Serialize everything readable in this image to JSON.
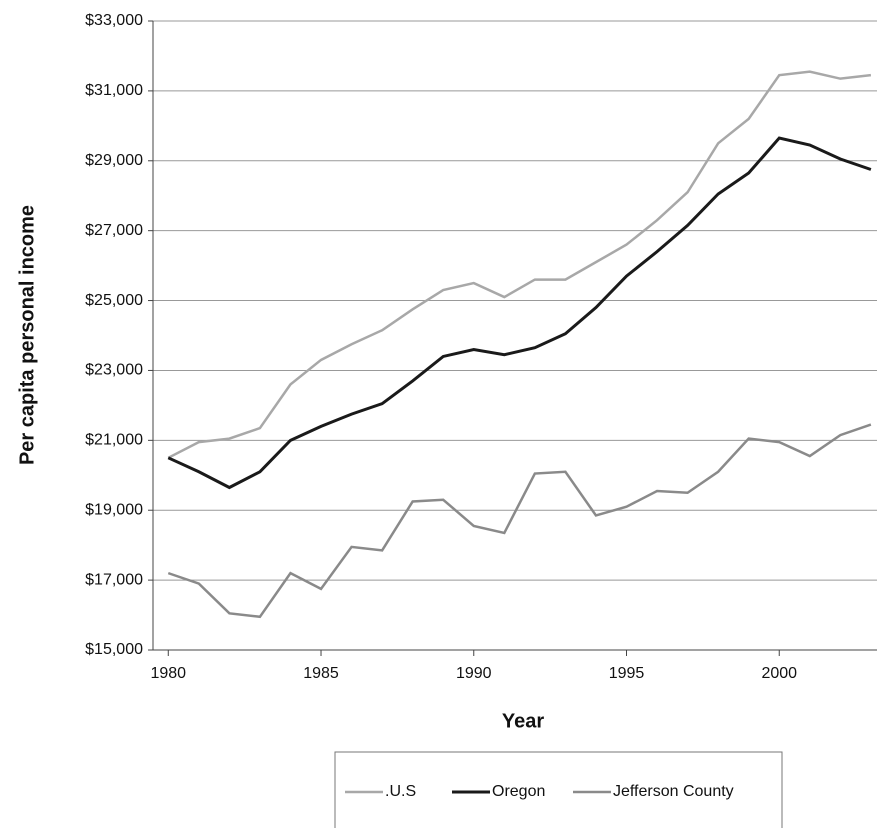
{
  "chart_data": {
    "type": "line",
    "x_label": "Year",
    "y_label": "Per capita personal income",
    "x": [
      1980,
      1981,
      1982,
      1983,
      1984,
      1985,
      1986,
      1987,
      1988,
      1989,
      1990,
      1991,
      1992,
      1993,
      1994,
      1995,
      1996,
      1997,
      1998,
      1999,
      2000,
      2001,
      2002,
      2003
    ],
    "series": [
      {
        "name": ".U.S",
        "color": "#a8a8a8",
        "values": [
          20500,
          20950,
          21050,
          21350,
          22600,
          23300,
          23750,
          24150,
          24750,
          25300,
          25500,
          25100,
          25600,
          25600,
          26100,
          26600,
          27300,
          28100,
          29500,
          30200,
          31450,
          31550,
          31350,
          31450
        ]
      },
      {
        "name": "Oregon",
        "color": "#1a1a1a",
        "values": [
          20500,
          20100,
          19650,
          20100,
          21000,
          21400,
          21750,
          22050,
          22700,
          23400,
          23600,
          23450,
          23650,
          24050,
          24800,
          25700,
          26400,
          27150,
          28050,
          28650,
          29650,
          29450,
          29050,
          28750
        ]
      },
      {
        "name": "Jefferson County",
        "color": "#8a8a8a",
        "values": [
          17200,
          16900,
          16050,
          15950,
          17200,
          16750,
          17950,
          17850,
          19250,
          19300,
          18550,
          18350,
          20050,
          20100,
          18850,
          19100,
          19550,
          19500,
          20100,
          21050,
          20950,
          20550,
          21150,
          21450
        ]
      }
    ],
    "xlim": [
      1979.5,
      2003.2
    ],
    "xticks": [
      1980,
      1985,
      1990,
      1995,
      2000
    ],
    "ylim": [
      15000,
      33000
    ],
    "yticks": [
      {
        "value": 15000,
        "label": "$15,000"
      },
      {
        "value": 17000,
        "label": "$17,000"
      },
      {
        "value": 19000,
        "label": "$19,000"
      },
      {
        "value": 21000,
        "label": "$21,000"
      },
      {
        "value": 23000,
        "label": "$23,000"
      },
      {
        "value": 25000,
        "label": "$25,000"
      },
      {
        "value": 27000,
        "label": "$27,000"
      },
      {
        "value": 29000,
        "label": "$29,000"
      },
      {
        "value": 31000,
        "label": "$31,000"
      },
      {
        "value": 33000,
        "label": "$33,000"
      }
    ],
    "grid": true,
    "legend": "bottom"
  }
}
